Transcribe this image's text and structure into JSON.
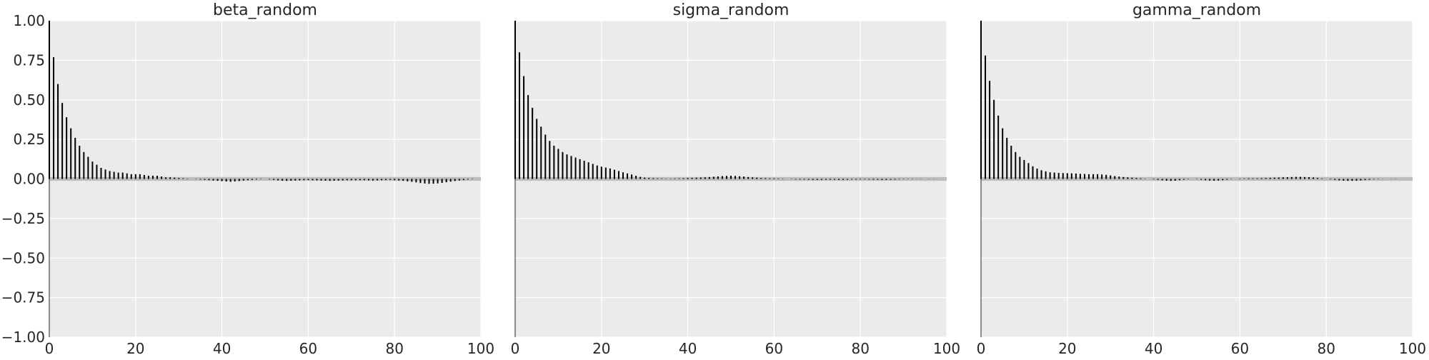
{
  "figure": {
    "colors": {
      "panel_bg": "#ebebeb",
      "grid": "#ffffff",
      "bar": "#000000",
      "band": "#bdbdbd",
      "text": "#262626"
    }
  },
  "chart_data": [
    {
      "type": "bar",
      "title": "beta_random",
      "xlabel": "",
      "ylabel": "",
      "xlim": [
        0,
        100
      ],
      "ylim": [
        -1.0,
        1.0
      ],
      "xticks": [
        0,
        20,
        40,
        60,
        80,
        100
      ],
      "xtick_labels": [
        "0",
        "20",
        "40",
        "60",
        "80",
        "100"
      ],
      "yticks": [
        1.0,
        0.75,
        0.5,
        0.25,
        0.0,
        -0.25,
        -0.5,
        -0.75,
        -1.0
      ],
      "ytick_labels": [
        "1.00",
        "0.75",
        "0.50",
        "0.25",
        "0.00",
        "−0.25",
        "−0.50",
        "−0.75",
        "−1.00"
      ],
      "grid": true,
      "band": [
        -0.012,
        0.012
      ],
      "x": [
        0,
        1,
        2,
        3,
        4,
        5,
        6,
        7,
        8,
        9,
        10,
        11,
        12,
        13,
        14,
        15,
        16,
        17,
        18,
        19,
        20,
        21,
        22,
        23,
        24,
        25,
        26,
        27,
        28,
        29,
        30,
        31,
        32,
        33,
        34,
        35,
        36,
        37,
        38,
        39,
        40,
        41,
        42,
        43,
        44,
        45,
        46,
        47,
        48,
        49,
        50,
        51,
        52,
        53,
        54,
        55,
        56,
        57,
        58,
        59,
        60,
        61,
        62,
        63,
        64,
        65,
        66,
        67,
        68,
        69,
        70,
        71,
        72,
        73,
        74,
        75,
        76,
        77,
        78,
        79,
        80,
        81,
        82,
        83,
        84,
        85,
        86,
        87,
        88,
        89,
        90,
        91,
        92,
        93,
        94,
        95,
        96,
        97,
        98,
        99
      ],
      "values": [
        1.0,
        0.77,
        0.6,
        0.48,
        0.39,
        0.32,
        0.26,
        0.21,
        0.17,
        0.14,
        0.11,
        0.09,
        0.07,
        0.06,
        0.05,
        0.045,
        0.04,
        0.04,
        0.035,
        0.03,
        0.03,
        0.03,
        0.025,
        0.02,
        0.02,
        0.02,
        0.015,
        0.01,
        0.01,
        0.008,
        0.006,
        0.004,
        0.002,
        0.0,
        -0.002,
        -0.004,
        -0.006,
        -0.008,
        -0.01,
        -0.012,
        -0.014,
        -0.016,
        -0.018,
        -0.016,
        -0.013,
        -0.01,
        -0.008,
        -0.006,
        -0.004,
        -0.002,
        0.0,
        -0.003,
        -0.006,
        -0.009,
        -0.011,
        -0.012,
        -0.011,
        -0.01,
        -0.009,
        -0.008,
        -0.007,
        -0.008,
        -0.009,
        -0.01,
        -0.011,
        -0.012,
        -0.011,
        -0.01,
        -0.009,
        -0.008,
        -0.008,
        -0.008,
        -0.008,
        -0.008,
        -0.009,
        -0.01,
        -0.009,
        -0.008,
        -0.007,
        -0.006,
        -0.008,
        -0.01,
        -0.012,
        -0.015,
        -0.018,
        -0.022,
        -0.026,
        -0.029,
        -0.031,
        -0.03,
        -0.028,
        -0.025,
        -0.021,
        -0.017,
        -0.013,
        -0.01,
        -0.007,
        -0.004,
        -0.002,
        0.0
      ]
    },
    {
      "type": "bar",
      "title": "sigma_random",
      "xlabel": "",
      "ylabel": "",
      "xlim": [
        0,
        100
      ],
      "ylim": [
        -1.0,
        1.0
      ],
      "xticks": [
        0,
        20,
        40,
        60,
        80,
        100
      ],
      "xtick_labels": [
        "0",
        "20",
        "40",
        "60",
        "80",
        "100"
      ],
      "yticks": [],
      "ytick_labels": [],
      "grid": true,
      "band": [
        -0.012,
        0.012
      ],
      "x": [
        0,
        1,
        2,
        3,
        4,
        5,
        6,
        7,
        8,
        9,
        10,
        11,
        12,
        13,
        14,
        15,
        16,
        17,
        18,
        19,
        20,
        21,
        22,
        23,
        24,
        25,
        26,
        27,
        28,
        29,
        30,
        31,
        32,
        33,
        34,
        35,
        36,
        37,
        38,
        39,
        40,
        41,
        42,
        43,
        44,
        45,
        46,
        47,
        48,
        49,
        50,
        51,
        52,
        53,
        54,
        55,
        56,
        57,
        58,
        59,
        60,
        61,
        62,
        63,
        64,
        65,
        66,
        67,
        68,
        69,
        70,
        71,
        72,
        73,
        74,
        75,
        76,
        77,
        78,
        79,
        80,
        81,
        82,
        83,
        84,
        85,
        86,
        87,
        88,
        89,
        90,
        91,
        92,
        93,
        94,
        95,
        96,
        97,
        98,
        99
      ],
      "values": [
        1.0,
        0.8,
        0.65,
        0.53,
        0.45,
        0.38,
        0.33,
        0.28,
        0.24,
        0.21,
        0.19,
        0.17,
        0.155,
        0.145,
        0.135,
        0.125,
        0.115,
        0.105,
        0.095,
        0.085,
        0.078,
        0.072,
        0.066,
        0.058,
        0.05,
        0.042,
        0.035,
        0.028,
        0.02,
        0.013,
        0.008,
        0.006,
        0.005,
        0.004,
        0.003,
        0.002,
        0.002,
        0.003,
        0.004,
        0.005,
        0.006,
        0.007,
        0.008,
        0.009,
        0.01,
        0.012,
        0.014,
        0.016,
        0.018,
        0.019,
        0.02,
        0.019,
        0.017,
        0.015,
        0.012,
        0.01,
        0.008,
        0.006,
        0.005,
        0.004,
        0.004,
        0.003,
        0.002,
        0.0,
        -0.002,
        -0.003,
        -0.004,
        -0.004,
        -0.005,
        -0.006,
        -0.006,
        -0.006,
        -0.005,
        -0.005,
        -0.005,
        -0.006,
        -0.006,
        -0.005,
        -0.004,
        -0.004,
        -0.003,
        -0.003,
        -0.004,
        -0.005,
        -0.005,
        -0.006,
        -0.006,
        -0.005,
        -0.004,
        -0.003,
        -0.002,
        -0.002,
        -0.002,
        -0.001,
        -0.001,
        0.0,
        -0.001,
        -0.001,
        0.0,
        0.0
      ]
    },
    {
      "type": "bar",
      "title": "gamma_random",
      "xlabel": "",
      "ylabel": "",
      "xlim": [
        0,
        100
      ],
      "ylim": [
        -1.0,
        1.0
      ],
      "xticks": [
        0,
        20,
        40,
        60,
        80,
        100
      ],
      "xtick_labels": [
        "0",
        "20",
        "40",
        "60",
        "80",
        "100"
      ],
      "yticks": [],
      "ytick_labels": [],
      "grid": true,
      "band": [
        -0.012,
        0.012
      ],
      "x": [
        0,
        1,
        2,
        3,
        4,
        5,
        6,
        7,
        8,
        9,
        10,
        11,
        12,
        13,
        14,
        15,
        16,
        17,
        18,
        19,
        20,
        21,
        22,
        23,
        24,
        25,
        26,
        27,
        28,
        29,
        30,
        31,
        32,
        33,
        34,
        35,
        36,
        37,
        38,
        39,
        40,
        41,
        42,
        43,
        44,
        45,
        46,
        47,
        48,
        49,
        50,
        51,
        52,
        53,
        54,
        55,
        56,
        57,
        58,
        59,
        60,
        61,
        62,
        63,
        64,
        65,
        66,
        67,
        68,
        69,
        70,
        71,
        72,
        73,
        74,
        75,
        76,
        77,
        78,
        79,
        80,
        81,
        82,
        83,
        84,
        85,
        86,
        87,
        88,
        89,
        90,
        91,
        92,
        93,
        94,
        95,
        96,
        97,
        98,
        99
      ],
      "values": [
        1.0,
        0.78,
        0.62,
        0.5,
        0.4,
        0.32,
        0.26,
        0.21,
        0.17,
        0.14,
        0.12,
        0.1,
        0.08,
        0.065,
        0.055,
        0.048,
        0.042,
        0.04,
        0.038,
        0.037,
        0.036,
        0.035,
        0.034,
        0.032,
        0.031,
        0.03,
        0.03,
        0.03,
        0.028,
        0.026,
        0.022,
        0.018,
        0.015,
        0.012,
        0.01,
        0.008,
        0.006,
        0.004,
        0.002,
        0.0,
        -0.003,
        -0.006,
        -0.009,
        -0.011,
        -0.012,
        -0.011,
        -0.008,
        -0.005,
        -0.002,
        0.0,
        -0.002,
        -0.005,
        -0.008,
        -0.01,
        -0.011,
        -0.01,
        -0.008,
        -0.005,
        -0.002,
        0.0,
        0.002,
        0.003,
        0.004,
        0.004,
        0.004,
        0.005,
        0.006,
        0.007,
        0.008,
        0.009,
        0.01,
        0.011,
        0.012,
        0.013,
        0.013,
        0.012,
        0.011,
        0.009,
        0.006,
        0.003,
        0.0,
        -0.003,
        -0.006,
        -0.009,
        -0.011,
        -0.012,
        -0.012,
        -0.011,
        -0.009,
        -0.007,
        -0.005,
        -0.003,
        -0.002,
        -0.001,
        0.0,
        0.001,
        0.001,
        0.0,
        0.0,
        0.0
      ]
    }
  ]
}
